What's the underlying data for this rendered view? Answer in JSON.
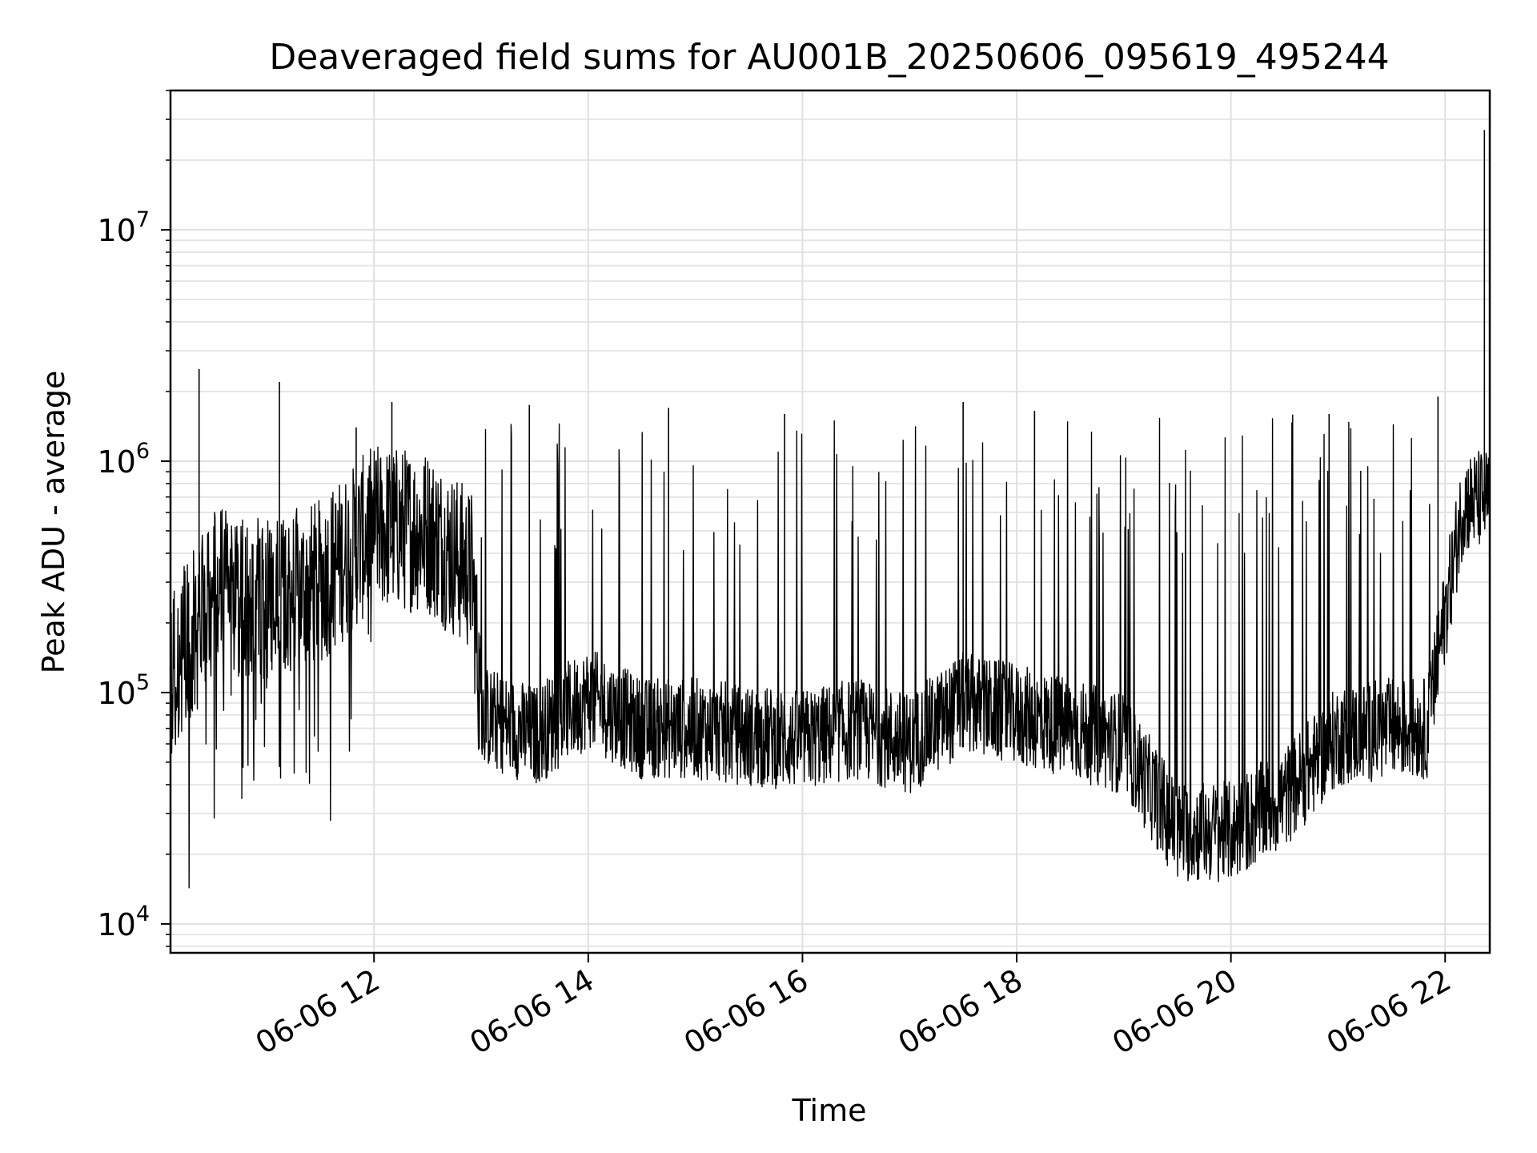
{
  "chart_data": {
    "type": "line",
    "title": "Deaveraged field sums for AU001B_20250606_095619_495244",
    "xlabel": "Time",
    "ylabel": "Peak ADU - average",
    "y_scale": "log",
    "ylim": [
      7500,
      40000000
    ],
    "xlim": [
      "2025-06-06 10:06",
      "2025-06-06 22:25"
    ],
    "grid": true,
    "legend": "none",
    "line_color": "#000000",
    "x_ticks": [
      "06-06 12",
      "06-06 14",
      "06-06 16",
      "06-06 18",
      "06-06 20",
      "06-06 22"
    ],
    "y_ticks": [
      {
        "base": "10",
        "exp": "4"
      },
      {
        "base": "10",
        "exp": "5"
      },
      {
        "base": "10",
        "exp": "6"
      },
      {
        "base": "10",
        "exp": "7"
      }
    ],
    "series": [
      {
        "x": [
          "2025-06-06 10:06",
          "2025-06-06 10:30",
          "2025-06-06 11:00",
          "2025-06-06 11:30",
          "2025-06-06 12:00",
          "2025-06-06 12:30",
          "2025-06-06 12:55",
          "2025-06-06 13:00",
          "2025-06-06 13:30",
          "2025-06-06 14:00",
          "2025-06-06 14:30",
          "2025-06-06 15:00",
          "2025-06-06 15:30",
          "2025-06-06 16:00",
          "2025-06-06 16:30",
          "2025-06-06 17:00",
          "2025-06-06 17:30",
          "2025-06-06 18:00",
          "2025-06-06 18:30",
          "2025-06-06 19:00",
          "2025-06-06 19:30",
          "2025-06-06 20:00",
          "2025-06-06 20:30",
          "2025-06-06 21:00",
          "2025-06-06 21:30",
          "2025-06-06 21:50",
          "2025-06-06 22:00",
          "2025-06-06 22:10",
          "2025-06-06 22:25"
        ],
        "y": [
          120000,
          280000,
          250000,
          300000,
          520000,
          500000,
          330000,
          80000,
          65000,
          95000,
          70000,
          70000,
          65000,
          62000,
          70000,
          60000,
          90000,
          80000,
          70000,
          60000,
          25000,
          25000,
          35000,
          65000,
          70000,
          70000,
          220000,
          650000,
          700000
        ]
      }
    ],
    "spikes": [
      {
        "x": "2025-06-06 10:22",
        "y": 2500000
      },
      {
        "x": "2025-06-06 11:07",
        "y": 2200000
      },
      {
        "x": "2025-06-06 11:50",
        "y": 1400000
      },
      {
        "x": "2025-06-06 12:10",
        "y": 1800000
      },
      {
        "x": "2025-06-06 13:27",
        "y": 1750000
      },
      {
        "x": "2025-06-06 14:45",
        "y": 1700000
      },
      {
        "x": "2025-06-06 15:50",
        "y": 1600000
      },
      {
        "x": "2025-06-06 17:30",
        "y": 1800000
      },
      {
        "x": "2025-06-06 18:10",
        "y": 1650000
      },
      {
        "x": "2025-06-06 20:55",
        "y": 1600000
      },
      {
        "x": "2025-06-06 21:56",
        "y": 1900000
      },
      {
        "x": "2025-06-06 22:22",
        "y": 27000000
      }
    ]
  }
}
